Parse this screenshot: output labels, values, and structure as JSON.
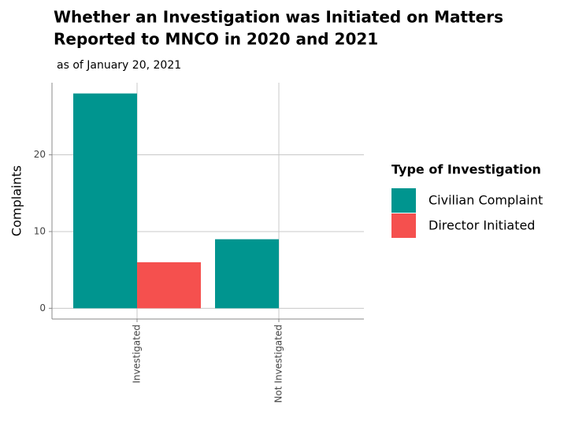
{
  "chart_data": {
    "type": "bar",
    "title": [
      "Whether an Investigation was Initiated on Matters",
      "Reported to MNCO in 2020 and 2021"
    ],
    "subtitle": "as of January 20, 2021",
    "y_label": "Complaints",
    "categories": [
      "Investigated",
      "Not Investigated"
    ],
    "series": [
      {
        "name": "Civilian Complaint",
        "color": "#00958f",
        "values": [
          28,
          9
        ]
      },
      {
        "name": "Director Initiated",
        "color": "#f5504e",
        "values": [
          6,
          null
        ]
      }
    ],
    "legend_title": "Type of Investigation",
    "legend": "right",
    "ylim": [
      -1.4,
      29.4
    ],
    "yticks": [
      0,
      10,
      20
    ],
    "grid": true
  }
}
